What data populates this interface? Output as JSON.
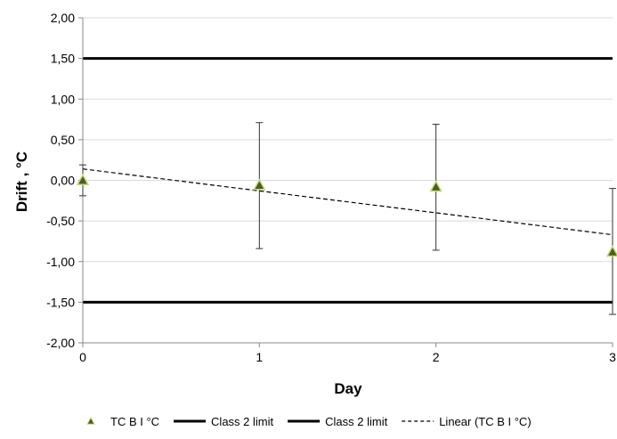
{
  "chart_data": {
    "type": "scatter",
    "xlabel": "Day",
    "ylabel": "Drift , °C",
    "xlim": [
      0,
      3
    ],
    "ylim": [
      -2.0,
      2.0
    ],
    "x_ticks": [
      0,
      1,
      2,
      3
    ],
    "y_ticks": [
      2.0,
      1.5,
      1.0,
      0.5,
      0.0,
      -0.5,
      -1.0,
      -1.5,
      -2.0
    ],
    "x_tick_labels": [
      "0",
      "1",
      "2",
      "3"
    ],
    "y_tick_labels": [
      "2,00",
      "1,50",
      "1,00",
      "0,50",
      "0,00",
      "-0,50",
      "-1,00",
      "-1,50",
      "-2,00"
    ],
    "grid": "horizontal",
    "legend_position": "bottom",
    "series": [
      {
        "name": "TC B I °C",
        "kind": "points",
        "marker": "triangle",
        "color": "#556b2f",
        "x": [
          0,
          1,
          2,
          3
        ],
        "y": [
          0.0,
          -0.06,
          -0.08,
          -0.88
        ],
        "error_low": [
          -0.19,
          -0.84,
          -0.86,
          -1.65
        ],
        "error_high": [
          0.19,
          0.71,
          0.69,
          -0.1
        ]
      },
      {
        "name": "Class 2 limit",
        "kind": "hline",
        "color": "#000000",
        "y": 1.5
      },
      {
        "name": "Class 2 limit",
        "kind": "hline",
        "color": "#000000",
        "y": -1.5
      },
      {
        "name": "Linear  (TC B I °C)",
        "kind": "trend",
        "color": "#000000",
        "x": [
          0,
          3
        ],
        "y": [
          0.14,
          -0.67
        ]
      }
    ]
  }
}
